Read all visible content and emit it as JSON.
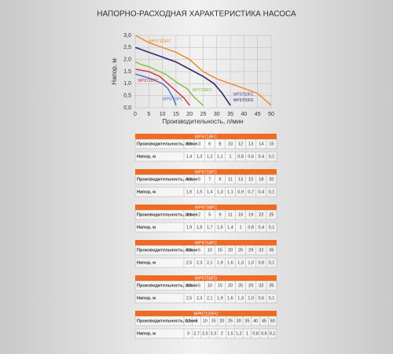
{
  "chart_data": {
    "type": "line",
    "title": "НАПОРНО-РАСХОДНАЯ ХАРАКТЕРИСТИКА НАСОСА",
    "x_label": "Производительность, л/мин",
    "y_label": "Напор, м",
    "row_labels": [
      "Производительность, л/мин",
      "Напор, м"
    ],
    "xlim": [
      0,
      50
    ],
    "xticks": [
      0,
      5,
      10,
      15,
      20,
      25,
      30,
      35,
      40,
      45,
      50
    ],
    "ylim": [
      0,
      3
    ],
    "yticks": [
      {
        "value": 0,
        "label": "0,0"
      },
      {
        "value": 0.5,
        "label": "0,5"
      },
      {
        "value": 1,
        "label": "1,0"
      },
      {
        "value": 1.5,
        "label": "1,5"
      },
      {
        "value": 2,
        "label": "2,0"
      },
      {
        "value": 2.5,
        "label": "2,5"
      },
      {
        "value": 3,
        "label": "3,0"
      }
    ],
    "series": [
      {
        "name": "WP9718FC",
        "color": "#4f73c9",
        "x": [
          0.1,
          3,
          6,
          8,
          10,
          12,
          13,
          14,
          15
        ],
        "x_labels": [
          "0,1",
          "3",
          "6",
          "8",
          "10",
          "12",
          "13",
          "14",
          "15"
        ],
        "values": [
          1.4,
          1.3,
          1.2,
          1.1,
          1,
          0.8,
          0.6,
          0.4,
          0.1
        ],
        "value_labels": [
          "1,4",
          "1,3",
          "1,2",
          "1,1",
          "1",
          "0,8",
          "0,6",
          "0,4",
          "0,1"
        ]
      },
      {
        "name": "WP9728FC",
        "color": "#d63a3a",
        "x": [
          0.1,
          5,
          7,
          9,
          11,
          13,
          15,
          18,
          20
        ],
        "x_labels": [
          "0,1",
          "5",
          "7",
          "9",
          "11",
          "13",
          "15",
          "18",
          "20"
        ],
        "values": [
          1.6,
          1.5,
          1.4,
          1.3,
          1.1,
          0.9,
          0.7,
          0.4,
          0.1
        ],
        "value_labels": [
          "1,6",
          "1,5",
          "1,4",
          "1,3",
          "1,1",
          "0,9",
          "0,7",
          "0,4",
          "0,1"
        ]
      },
      {
        "name": "WP9738FC",
        "color": "#8cc03c",
        "x": [
          0.1,
          2,
          5,
          9,
          11,
          16,
          19,
          22,
          25
        ],
        "x_labels": [
          "0,1",
          "2",
          "5",
          "9",
          "11",
          "16",
          "19",
          "22",
          "25"
        ],
        "values": [
          1.9,
          1.8,
          1.7,
          1.5,
          1.4,
          1,
          0.8,
          0.4,
          0.1
        ],
        "value_labels": [
          "1,9",
          "1,8",
          "1,7",
          "1,5",
          "1,4",
          "1",
          "0,8",
          "0,4",
          "0,1"
        ]
      },
      {
        "name": "WP9750FC",
        "color": "#5b3f96",
        "x": [
          0.1,
          5,
          10,
          15,
          20,
          25,
          29,
          32,
          35
        ],
        "x_labels": [
          "0,1",
          "5",
          "10",
          "15",
          "20",
          "25",
          "29",
          "32",
          "35"
        ],
        "values": [
          2.5,
          2.3,
          2.1,
          1.9,
          1.6,
          1.3,
          1,
          0.6,
          0.1
        ],
        "value_labels": [
          "2,5",
          "2,3",
          "2,1",
          "1,9",
          "1,6",
          "1,3",
          "1,0",
          "0,6",
          "0,1"
        ]
      },
      {
        "name": "WP9755FD",
        "color": "#3a2a6e",
        "x": [
          0.1,
          5,
          10,
          15,
          20,
          25,
          29,
          32,
          35
        ],
        "x_labels": [
          "0,1",
          "5",
          "10",
          "15",
          "20",
          "25",
          "29",
          "32",
          "35"
        ],
        "values": [
          2.5,
          2.3,
          2.1,
          1.9,
          1.6,
          1.3,
          1,
          0.6,
          0.1
        ],
        "value_labels": [
          "2,5",
          "2,3",
          "2,1",
          "1,9",
          "1,6",
          "1,3",
          "1,0",
          "0,6",
          "0,1"
        ]
      },
      {
        "name": "WP97120FC",
        "color": "#f28a2e",
        "x": [
          0.1,
          5,
          10,
          15,
          20,
          25,
          30,
          35,
          40,
          45,
          50
        ],
        "x_labels": [
          "0,1",
          "5",
          "10",
          "15",
          "20",
          "25",
          "30",
          "35",
          "40",
          "45",
          "50"
        ],
        "values": [
          3,
          2.7,
          2.5,
          2.3,
          2,
          1.5,
          1.2,
          1,
          0.8,
          0.6,
          0.1
        ],
        "value_labels": [
          "3",
          "2,7",
          "2,5",
          "2,3",
          "2",
          "1,5",
          "1,2",
          "1",
          "0,8",
          "0,6",
          "0,1"
        ]
      }
    ]
  }
}
